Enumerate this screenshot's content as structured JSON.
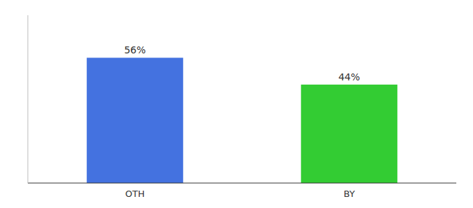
{
  "chart_data": {
    "type": "bar",
    "categories": [
      "OTH",
      "BY"
    ],
    "values": [
      56,
      44
    ],
    "value_labels": [
      "56%",
      "44%"
    ],
    "colors": [
      "#4472e0",
      "#33cc33"
    ],
    "ylim": [
      0,
      75
    ],
    "yticks": [],
    "tick_labels": "x",
    "data_labels": true,
    "grid": false
  }
}
